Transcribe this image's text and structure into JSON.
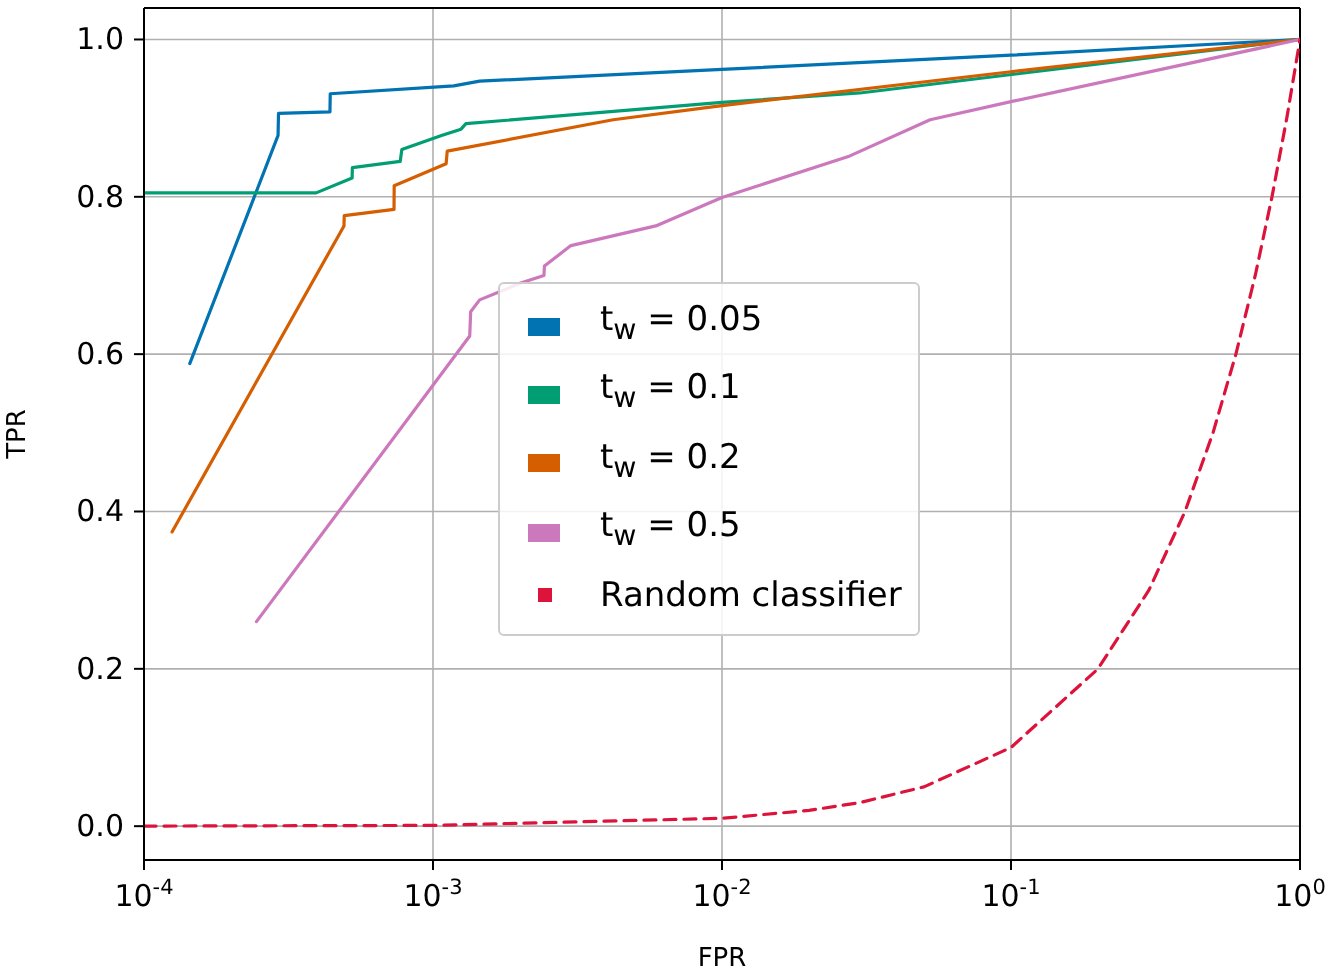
{
  "chart_data": {
    "type": "line",
    "xlabel": "FPR",
    "ylabel": "TPR",
    "log": "x",
    "grid": true,
    "legend": "center",
    "marker": "none",
    "line_style": "solid",
    "xlim": [
      0.0001,
      1
    ],
    "xticks": [
      {
        "value": 0.0001,
        "label": "10$^{-4}$"
      },
      {
        "value": 0.001,
        "label": "10$^{-3}$"
      },
      {
        "value": 0.01,
        "label": "10$^{-2}$"
      },
      {
        "value": 0.1,
        "label": "10$^{-1}$"
      },
      {
        "value": 1,
        "label": "10$^{0}$"
      }
    ],
    "ylim": [
      -0.043,
      1.04
    ],
    "yticks": [
      {
        "value": 0,
        "label": "0.0"
      },
      0.2,
      0.4,
      0.6,
      0.8,
      {
        "value": 1,
        "label": "1.0"
      }
    ],
    "series": [
      {
        "name": "t$_{w}$ = 0.05",
        "color": "#0173b2",
        "x": [
          0.000144,
          0.000291,
          0.000292,
          0.00044,
          0.000441,
          0.00118,
          0.00145,
          0.01,
          0.1,
          1
        ],
        "values": [
          0.588,
          0.878,
          0.906,
          0.908,
          0.931,
          0.941,
          0.947,
          0.962,
          0.98,
          1
        ]
      },
      {
        "name": "t$_{w}$ = 0.1",
        "color": "#029e73",
        "x": [
          0.0001,
          0.000394,
          0.000525,
          0.000526,
          0.00077,
          0.00078,
          0.00107,
          0.00125,
          0.0013,
          0.01,
          0.03,
          1
        ],
        "values": [
          0.805,
          0.805,
          0.824,
          0.837,
          0.845,
          0.86,
          0.878,
          0.886,
          0.893,
          0.92,
          0.932,
          1
        ]
      },
      {
        "name": "t$_{w}$ = 0.2",
        "color": "#d55e00",
        "x": [
          0.000125,
          0.000492,
          0.000493,
          0.000733,
          0.000734,
          0.00111,
          0.00112,
          0.0042,
          0.01,
          0.1,
          1
        ],
        "values": [
          0.374,
          0.763,
          0.776,
          0.784,
          0.814,
          0.842,
          0.858,
          0.898,
          0.916,
          0.959,
          1
        ]
      },
      {
        "name": "t$_{w}$ = 0.5",
        "color": "#cc78bc",
        "x": [
          0.000245,
          0.00134,
          0.00135,
          0.00145,
          0.002,
          0.00242,
          0.00243,
          0.003,
          0.0059,
          0.01,
          0.0277,
          0.0525,
          0.1,
          1
        ],
        "values": [
          0.26,
          0.623,
          0.654,
          0.669,
          0.69,
          0.7,
          0.712,
          0.738,
          0.763,
          0.799,
          0.852,
          0.898,
          0.921,
          1
        ]
      },
      {
        "name": "Random classifier",
        "color": "#dc143c",
        "line_style": "dashed",
        "x": [
          0.0001,
          0.001,
          0.01,
          0.02,
          0.03,
          0.05,
          0.1,
          0.2,
          0.3,
          0.4,
          0.5,
          0.6,
          0.7,
          0.8,
          0.9,
          1
        ],
        "values": [
          0.0001,
          0.001,
          0.01,
          0.02,
          0.03,
          0.05,
          0.1,
          0.2,
          0.3,
          0.4,
          0.5,
          0.6,
          0.7,
          0.8,
          0.9,
          1
        ]
      }
    ]
  }
}
